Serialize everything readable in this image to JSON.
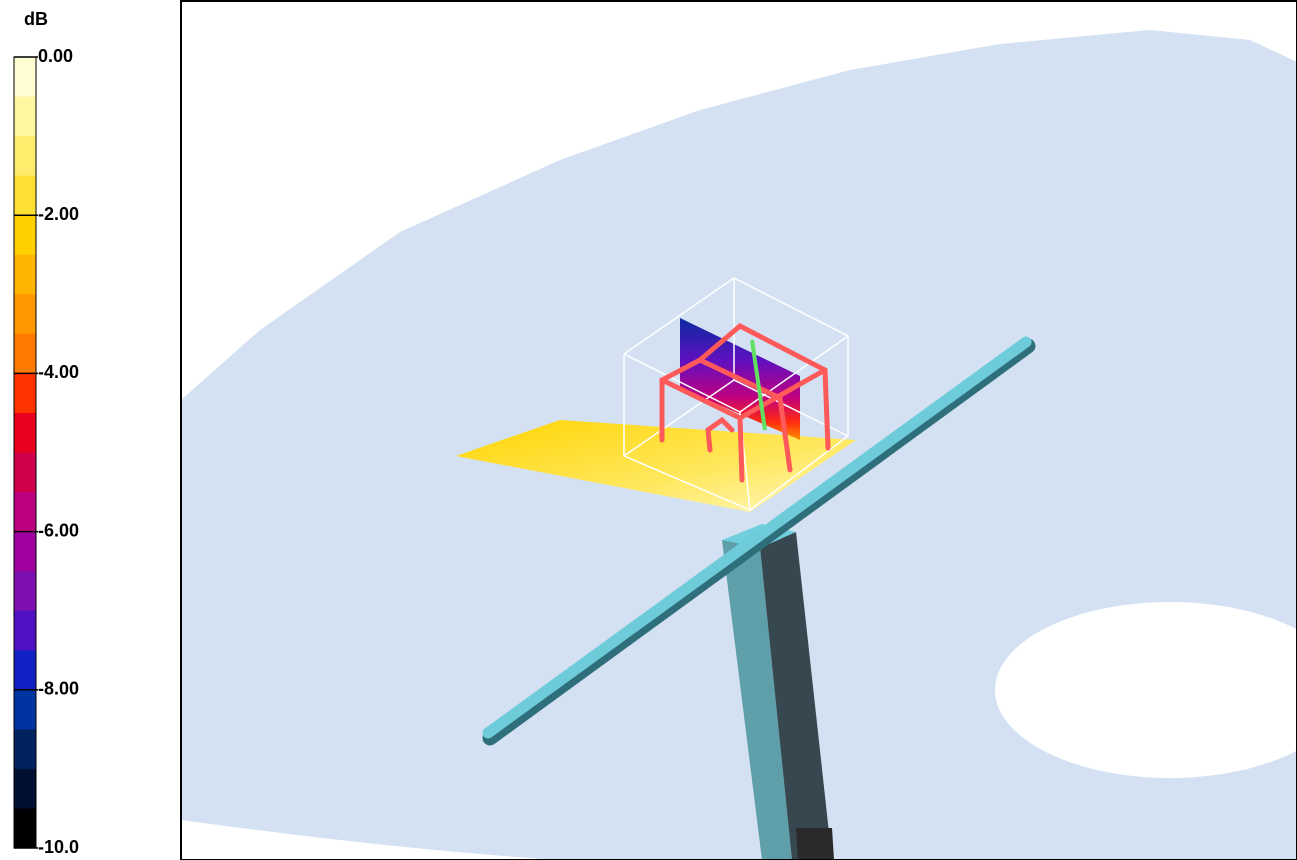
{
  "colorbar": {
    "unit": "dB",
    "lim": [
      -10,
      0
    ],
    "ticks": [
      {
        "value": 0,
        "label": "0.00"
      },
      {
        "value": -2,
        "label": "-2.00"
      },
      {
        "value": -4,
        "label": "-4.00"
      },
      {
        "value": -6,
        "label": "-6.00"
      },
      {
        "value": -8,
        "label": "-8.00"
      },
      {
        "value": -10,
        "label": "-10.0"
      }
    ],
    "colors": [
      "#fffdd2",
      "#fff6a0",
      "#ffec6c",
      "#ffe032",
      "#ffd000",
      "#ffb400",
      "#ff9800",
      "#ff7a00",
      "#ff3300",
      "#e8001e",
      "#cf004c",
      "#bd0080",
      "#a000a0",
      "#7f10b0",
      "#5010c4",
      "#1022c4",
      "#0034a0",
      "#002260",
      "#001030",
      "#000000"
    ]
  }
}
